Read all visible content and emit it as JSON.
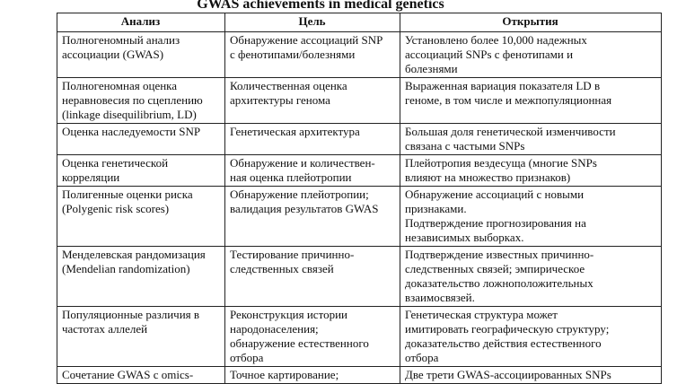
{
  "title": "GWAS achievements in medical genetics",
  "columns": [
    "Анализ",
    "Цель",
    "Открытия"
  ],
  "rows": [
    [
      "Полногеномный анализ\nассоциации (GWAS)",
      "Обнаружение ассоциаций SNP\nс фенотипами/болезнями",
      "Установлено более 10,000 надежных\nассоциаций SNPs с фенотипами и\nболезнями"
    ],
    [
      "Полногеномная оценка\nнеравновесия по сцеплению\n(linkage disequilibrium, LD)",
      "Количественная оценка\nархитектуры генома",
      "Выраженная вариация показателя LD в\nгеноме, в том числе и межпопуляционная"
    ],
    [
      "Оценка наследуемости SNP",
      "Генетическая архитектура",
      "Большая доля генетической изменчивости\nсвязана с частыми SNPs"
    ],
    [
      "Оценка генетической\nкорреляции",
      "Обнаружение и количествен-\nная оценка плейотропии",
      "Плейотропия вездесуща (многие SNPs\nвлияют на множество признаков)"
    ],
    [
      "Полигенные оценки риска\n(Polygenic risk scores)",
      "Обнаружение плейотропии;\nвалидация результатов GWAS",
      "Обнаружение ассоциаций с новыми\nпризнаками.\nПодтверждение прогнозирования на\nнезависимых выборках."
    ],
    [
      "Менделевская рандомизация\n(Mendelian randomization)",
      "Тестирование причинно-\nследственных связей",
      "Подтверждение известных причинно-\nследственных связей; эмпирическое\nдоказательство ложноположительных\nвзаимосвязей."
    ],
    [
      "Популяционные различия в\nчастотах аллелей",
      "Реконструкция истории\nнародонаселения;\nобнаружение естественного\nотбора",
      "Генетическая структура может\nимитировать географическую структуру;\nдоказательство действия естественного\nотбора"
    ],
    [
      "Сочетание GWAS с omics-",
      "Точное картирование;",
      "Две трети GWAS-ассоциированных SNPs"
    ]
  ]
}
